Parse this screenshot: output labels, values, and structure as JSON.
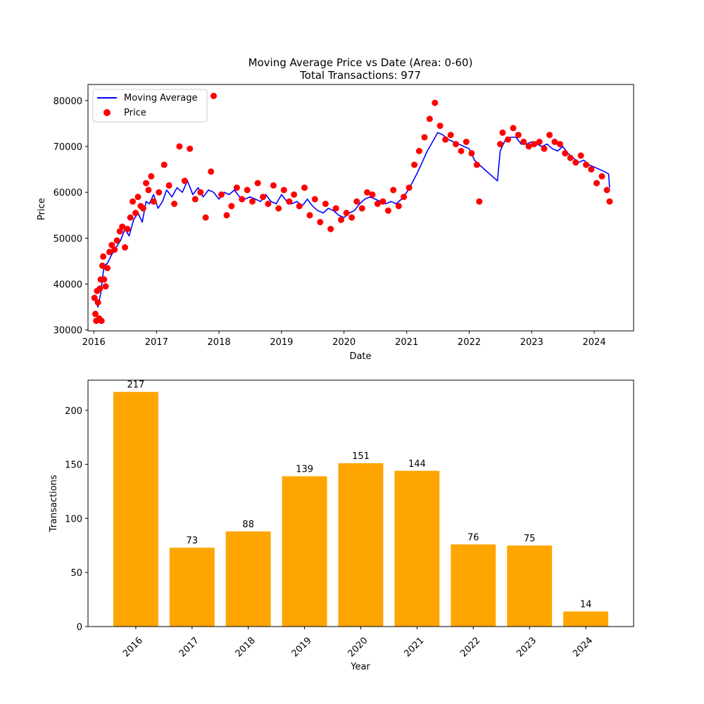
{
  "colors": {
    "line": "#0000ff",
    "scatter": "#ff0000",
    "bar": "#ffa500"
  },
  "chart_data": [
    {
      "type": "line+scatter",
      "title": "Moving Average Price vs Date (Area: 0-60)",
      "subtitle": "Total Transactions: 977",
      "xlabel": "Date",
      "ylabel": "Price",
      "xlim": [
        "2015-11-28",
        "2024-08-18"
      ],
      "ylim": [
        29800,
        83500
      ],
      "xticks": [
        "2016",
        "2017",
        "2018",
        "2019",
        "2020",
        "2021",
        "2022",
        "2023",
        "2024"
      ],
      "yticks": [
        "30000",
        "40000",
        "50000",
        "60000",
        "70000",
        "80000"
      ],
      "legend": {
        "placement": "top-left",
        "entries": [
          "Moving Average",
          "Price"
        ]
      },
      "grid": false,
      "moving_average": {
        "name": "Moving Average",
        "x": [
          "2016-01-05",
          "2016-01-25",
          "2016-02-10",
          "2016-03-01",
          "2016-03-20",
          "2016-04-15",
          "2016-05-10",
          "2016-06-05",
          "2016-07-01",
          "2016-07-25",
          "2016-08-20",
          "2016-09-15",
          "2016-10-10",
          "2016-11-01",
          "2016-11-20",
          "2016-12-15",
          "2017-01-10",
          "2017-02-05",
          "2017-03-01",
          "2017-04-01",
          "2017-05-01",
          "2017-06-01",
          "2017-07-01",
          "2017-08-01",
          "2017-09-01",
          "2017-10-01",
          "2017-11-01",
          "2017-12-01",
          "2018-01-01",
          "2018-02-01",
          "2018-03-01",
          "2018-04-01",
          "2018-05-01",
          "2018-06-01",
          "2018-07-01",
          "2018-08-01",
          "2018-09-01",
          "2018-10-01",
          "2018-11-01",
          "2018-12-01",
          "2019-01-01",
          "2019-02-01",
          "2019-03-01",
          "2019-04-01",
          "2019-05-01",
          "2019-06-01",
          "2019-07-01",
          "2019-08-01",
          "2019-09-01",
          "2019-10-01",
          "2019-11-01",
          "2019-12-01",
          "2020-01-01",
          "2020-02-01",
          "2020-03-01",
          "2020-04-01",
          "2020-05-01",
          "2020-06-01",
          "2020-07-01",
          "2020-08-01",
          "2020-09-01",
          "2020-10-01",
          "2020-11-01",
          "2020-12-01",
          "2021-01-01",
          "2021-02-01",
          "2021-03-01",
          "2021-04-01",
          "2021-05-01",
          "2021-06-01",
          "2021-07-01",
          "2021-08-01",
          "2021-09-01",
          "2021-10-01",
          "2021-11-01",
          "2021-12-01",
          "2022-01-01",
          "2022-02-01",
          "2022-03-01",
          "2022-06-15",
          "2022-07-01",
          "2022-08-01",
          "2022-09-01",
          "2022-10-01",
          "2022-11-01",
          "2022-12-01",
          "2023-01-01",
          "2023-02-01",
          "2023-03-01",
          "2023-04-01",
          "2023-05-01",
          "2023-06-01",
          "2023-07-01",
          "2023-08-01",
          "2023-09-01",
          "2023-10-01",
          "2023-11-01",
          "2023-12-01",
          "2024-01-01",
          "2024-02-01",
          "2024-03-01",
          "2024-03-25",
          "2024-03-31"
        ],
        "y": [
          37000,
          35000,
          38000,
          44000,
          44500,
          46500,
          48000,
          49500,
          52000,
          50500,
          54000,
          55500,
          53500,
          58000,
          57500,
          59500,
          56500,
          58000,
          60500,
          59000,
          61000,
          60000,
          62500,
          59500,
          61000,
          59000,
          60500,
          60000,
          58500,
          60000,
          59500,
          60500,
          59000,
          58500,
          59000,
          58500,
          58000,
          59500,
          58000,
          57500,
          59500,
          58000,
          57500,
          58000,
          57000,
          58500,
          57000,
          56000,
          55500,
          56500,
          56000,
          55000,
          54500,
          55500,
          56000,
          57500,
          58500,
          59000,
          58500,
          58000,
          57500,
          58000,
          57500,
          58500,
          60000,
          62000,
          64000,
          66500,
          69000,
          71000,
          73000,
          72500,
          71500,
          71000,
          70500,
          70000,
          69500,
          67000,
          66000,
          62500,
          69000,
          71500,
          72000,
          72000,
          70500,
          70500,
          71000,
          70500,
          70000,
          70500,
          69500,
          69000,
          70000,
          68500,
          67500,
          66500,
          67000,
          66000,
          65500,
          65000,
          64500,
          64000,
          61000
        ]
      },
      "price_points": {
        "name": "Price",
        "x": [
          "2016-01-05",
          "2016-01-10",
          "2016-01-15",
          "2016-01-20",
          "2016-01-25",
          "2016-02-01",
          "2016-02-05",
          "2016-02-10",
          "2016-02-15",
          "2016-02-20",
          "2016-02-25",
          "2016-03-01",
          "2016-03-10",
          "2016-03-20",
          "2016-04-01",
          "2016-04-15",
          "2016-05-01",
          "2016-05-15",
          "2016-06-01",
          "2016-06-15",
          "2016-07-01",
          "2016-07-15",
          "2016-08-01",
          "2016-08-15",
          "2016-09-01",
          "2016-09-15",
          "2016-10-01",
          "2016-10-15",
          "2016-11-01",
          "2016-11-15",
          "2016-12-01",
          "2016-12-15",
          "2017-01-15",
          "2017-02-15",
          "2017-03-15",
          "2017-04-15",
          "2017-05-15",
          "2017-06-15",
          "2017-07-15",
          "2017-08-15",
          "2017-09-15",
          "2017-10-15",
          "2017-11-15",
          "2017-12-01",
          "2018-01-15",
          "2018-02-15",
          "2018-03-15",
          "2018-04-15",
          "2018-05-15",
          "2018-06-15",
          "2018-07-15",
          "2018-08-15",
          "2018-09-15",
          "2018-10-15",
          "2018-11-15",
          "2018-12-15",
          "2019-01-15",
          "2019-02-15",
          "2019-03-15",
          "2019-04-15",
          "2019-05-15",
          "2019-06-15",
          "2019-07-15",
          "2019-08-15",
          "2019-09-15",
          "2019-10-15",
          "2019-11-15",
          "2019-12-15",
          "2020-01-15",
          "2020-02-15",
          "2020-03-15",
          "2020-04-15",
          "2020-05-15",
          "2020-06-15",
          "2020-07-15",
          "2020-08-15",
          "2020-09-15",
          "2020-10-15",
          "2020-11-15",
          "2020-12-15",
          "2021-01-15",
          "2021-02-15",
          "2021-03-15",
          "2021-04-15",
          "2021-05-15",
          "2021-06-15",
          "2021-07-15",
          "2021-08-15",
          "2021-09-15",
          "2021-10-15",
          "2021-11-15",
          "2021-12-15",
          "2022-01-15",
          "2022-02-15",
          "2022-03-01",
          "2022-07-01",
          "2022-07-15",
          "2022-08-15",
          "2022-09-15",
          "2022-10-15",
          "2022-11-15",
          "2022-12-15",
          "2023-01-15",
          "2023-02-15",
          "2023-03-15",
          "2023-04-15",
          "2023-05-15",
          "2023-06-15",
          "2023-07-15",
          "2023-08-15",
          "2023-09-15",
          "2023-10-15",
          "2023-11-15",
          "2023-12-15",
          "2024-01-15",
          "2024-02-15",
          "2024-03-15",
          "2024-03-31"
        ],
        "y": [
          37000,
          33500,
          32000,
          38500,
          36000,
          32500,
          39000,
          41000,
          32000,
          44000,
          46000,
          41000,
          39500,
          43500,
          47000,
          48500,
          47500,
          49500,
          51500,
          52500,
          48000,
          52000,
          54500,
          58000,
          55500,
          59000,
          57000,
          56500,
          62000,
          60500,
          63500,
          58000,
          60000,
          66000,
          61500,
          57500,
          70000,
          62500,
          69500,
          58500,
          60000,
          54500,
          64500,
          81000,
          59500,
          55000,
          57000,
          61000,
          58500,
          60500,
          58000,
          62000,
          59000,
          57500,
          61500,
          56500,
          60500,
          58000,
          59500,
          57000,
          61000,
          55000,
          58500,
          53500,
          57500,
          52000,
          56500,
          54000,
          55500,
          54500,
          58000,
          56500,
          60000,
          59500,
          57500,
          58000,
          56000,
          60500,
          57000,
          59000,
          61000,
          66000,
          69000,
          72000,
          76000,
          79500,
          74500,
          71500,
          72500,
          70500,
          69000,
          71000,
          68500,
          66000,
          58000,
          70500,
          73000,
          71500,
          74000,
          72500,
          71000,
          70000,
          70500,
          71000,
          69500,
          72500,
          71000,
          70500,
          68500,
          67500,
          66500,
          68000,
          66000,
          65000,
          62000,
          63500,
          60500,
          58000
        ]
      }
    },
    {
      "type": "bar",
      "title": "",
      "xlabel": "Year",
      "ylabel": "Transactions",
      "categories": [
        "2016",
        "2017",
        "2018",
        "2019",
        "2020",
        "2021",
        "2022",
        "2023",
        "2024"
      ],
      "values": [
        217,
        73,
        88,
        139,
        151,
        144,
        76,
        75,
        14
      ],
      "data_labels": [
        "217",
        "73",
        "88",
        "139",
        "151",
        "144",
        "76",
        "75",
        "14"
      ],
      "ylim": [
        0,
        227.85
      ],
      "yticks": [
        "0",
        "50",
        "100",
        "150",
        "200"
      ],
      "grid": false
    }
  ]
}
